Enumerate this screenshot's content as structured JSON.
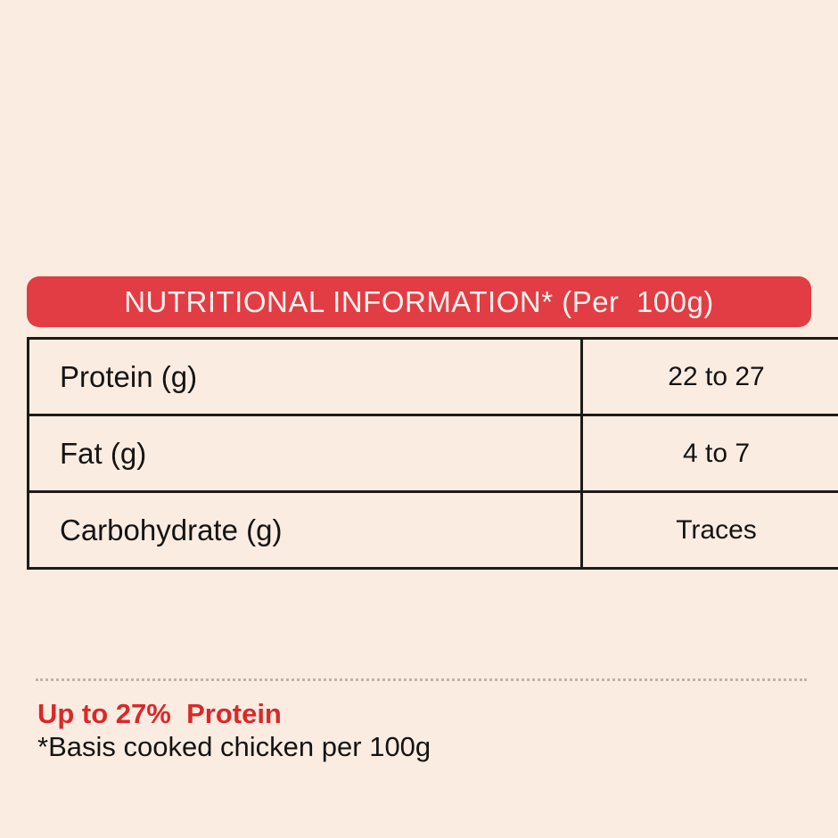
{
  "page": {
    "background_color": "#fbece1"
  },
  "header_banner": {
    "title": "NUTRITIONAL INFORMATION* (Per  100g)",
    "background_color": "#e23c44",
    "text_color": "#fdf2ed"
  },
  "table": {
    "border_color": "#1d1b18",
    "rows": [
      {
        "label": "Protein (g)",
        "value": "22 to 27"
      },
      {
        "label": "Fat (g)",
        "value": "4 to 7"
      },
      {
        "label": "Carbohydrate (g)",
        "value": "Traces"
      }
    ]
  },
  "footnotes": {
    "highlight": "Up to 27%  Protein",
    "highlight_color": "#d8292b",
    "note": "*Basis cooked chicken per 100g"
  }
}
